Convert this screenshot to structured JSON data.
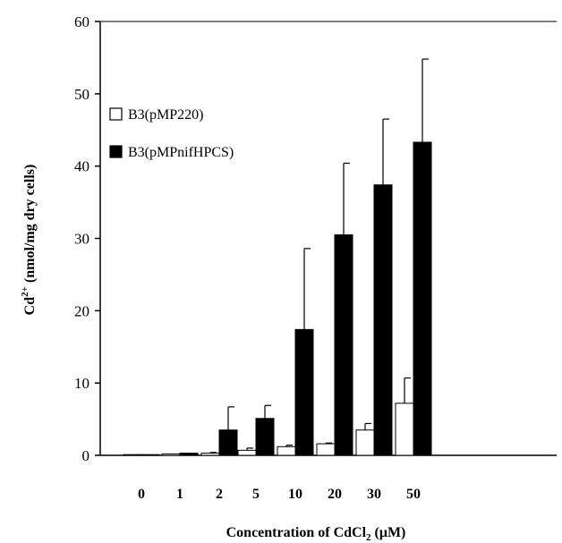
{
  "chart_data": {
    "type": "bar",
    "categories": [
      "0",
      "1",
      "2",
      "5",
      "10",
      "20",
      "30",
      "50"
    ],
    "series": [
      {
        "name": "B3(pMP220)",
        "color": "#ffffff",
        "values": [
          0.1,
          0.2,
          0.3,
          0.7,
          1.2,
          1.6,
          3.5,
          7.2
        ],
        "errors": [
          0,
          0,
          0.1,
          0.3,
          0.2,
          0.1,
          0.9,
          3.5
        ]
      },
      {
        "name": "B3(pMPnifHPCS)",
        "color": "#000000",
        "values": [
          0.1,
          0.3,
          3.5,
          5.1,
          17.4,
          30.5,
          37.4,
          43.3
        ],
        "errors": [
          0,
          0,
          3.2,
          1.8,
          11.2,
          9.9,
          9.1,
          11.5
        ]
      }
    ],
    "ylim": [
      0,
      60
    ],
    "yticks": [
      "0",
      "10",
      "20",
      "30",
      "40",
      "50",
      "60"
    ],
    "ylabel": {
      "main": "Cd",
      "sup": "2+",
      "rest": " (nmol/mg  dry cells)"
    },
    "xlabel": {
      "main": "Concentration of CdCl",
      "sub": "2",
      "rest": " (μM)"
    },
    "legend_position": "top-left",
    "grid": false
  }
}
